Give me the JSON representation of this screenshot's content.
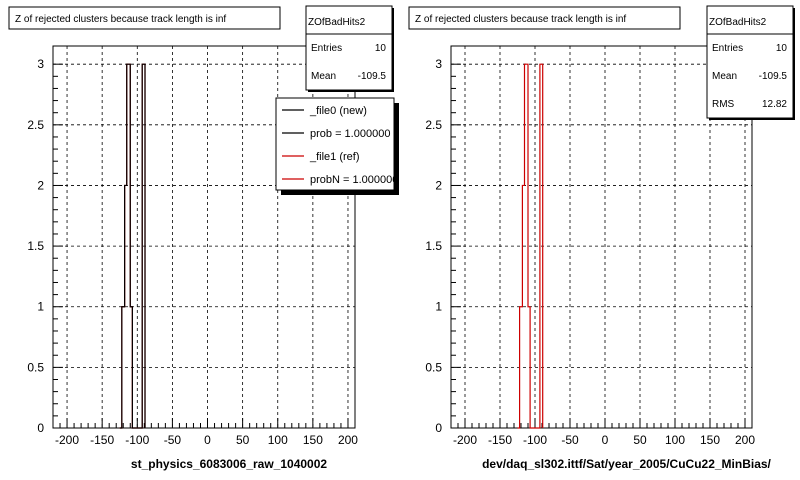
{
  "chart_data": [
    {
      "type": "histogram-step",
      "title": "Z of rejected clusters  because track length is inf",
      "xlabel": "st_physics_6083006_raw_1040002",
      "ylabel": "",
      "xlim": [
        -220,
        210
      ],
      "ylim": [
        0,
        3.15
      ],
      "xticks": [
        -200,
        -150,
        -100,
        -50,
        0,
        50,
        100,
        150,
        200
      ],
      "yticks": [
        0,
        0.5,
        1,
        1.5,
        2,
        2.5,
        3
      ],
      "xtick_labels": [
        "-200",
        "-150",
        "-100",
        "-50",
        "0",
        "50",
        "100",
        "150",
        "200"
      ],
      "ytick_labels": [
        "0",
        "0.5",
        "1",
        "1.5",
        "2",
        "2.5",
        "3"
      ],
      "grid": true,
      "stats": {
        "name": "ZOfBadHits2",
        "rows": [
          {
            "label": "Entries",
            "value": "10"
          },
          {
            "label": "Mean",
            "value": "-109.5"
          }
        ]
      },
      "legend": {
        "placement": "top-right",
        "entries": [
          {
            "label": "_file0 (new)",
            "color": "#000000"
          },
          {
            "label": "prob = 1.000000",
            "color": "#000000"
          },
          {
            "label": "_file1 (ref)",
            "color": "#cc0000"
          },
          {
            "label": "probN = 1.000000",
            "color": "#cc0000"
          }
        ]
      },
      "series": [
        {
          "color": "#cc0000",
          "x": [
            -125,
            -122,
            -118,
            -115,
            -110,
            -107,
            -93,
            -91,
            -89
          ],
          "y": [
            0,
            1,
            2,
            3,
            1,
            0,
            3,
            3,
            0
          ]
        },
        {
          "color": "#000000",
          "x": [
            -125,
            -122,
            -118,
            -115,
            -110,
            -107,
            -93,
            -91,
            -89
          ],
          "y": [
            0,
            1,
            2,
            3,
            1,
            0,
            3,
            3,
            0
          ]
        }
      ]
    },
    {
      "type": "histogram-step",
      "title": "Z of rejected clusters  because track length is inf",
      "xlabel": "dev/daq_sl302.ittf/Sat/year_2005/CuCu22_MinBias/",
      "ylabel": "",
      "xlim": [
        -220,
        210
      ],
      "ylim": [
        0,
        3.15
      ],
      "xticks": [
        -200,
        -150,
        -100,
        -50,
        0,
        50,
        100,
        150,
        200
      ],
      "yticks": [
        0,
        0.5,
        1,
        1.5,
        2,
        2.5,
        3
      ],
      "xtick_labels": [
        "-200",
        "-150",
        "-100",
        "-50",
        "0",
        "50",
        "100",
        "150",
        "200"
      ],
      "ytick_labels": [
        "0",
        "0.5",
        "1",
        "1.5",
        "2",
        "2.5",
        "3"
      ],
      "grid": true,
      "stats": {
        "name": "ZOfBadHits2",
        "rows": [
          {
            "label": "Entries",
            "value": "10"
          },
          {
            "label": "Mean",
            "value": "-109.5"
          },
          {
            "label": "RMS",
            "value": "12.82"
          }
        ]
      },
      "series": [
        {
          "color": "#cc0000",
          "x": [
            -125,
            -122,
            -118,
            -115,
            -110,
            -107,
            -93,
            -91,
            -89
          ],
          "y": [
            0,
            1,
            2,
            3,
            1,
            0,
            3,
            3,
            0
          ]
        }
      ]
    }
  ]
}
